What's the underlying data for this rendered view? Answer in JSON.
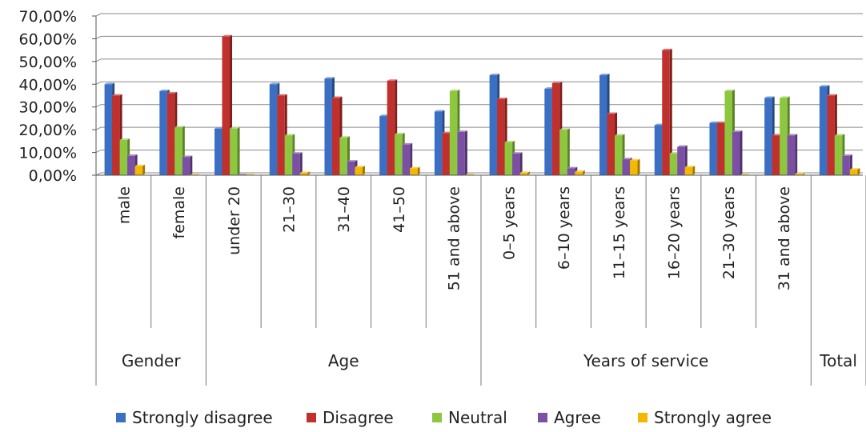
{
  "chart_data": {
    "type": "bar",
    "ylim": [
      0,
      70
    ],
    "y_ticks": [
      "0,00%",
      "10,00%",
      "20,00%",
      "30,00%",
      "40,00%",
      "50,00%",
      "60,00%",
      "70,00%"
    ],
    "y_tick_values": [
      0,
      10,
      20,
      30,
      40,
      50,
      60,
      70
    ],
    "grid": true,
    "legend_position": "bottom",
    "categories": [
      "male",
      "female",
      "under 20",
      "21–30",
      "31–40",
      "41–50",
      "51 and above",
      "0–5 years",
      "6–10 years",
      "11–15 years",
      "16–20 years",
      "21–30 years",
      "31 and above",
      ""
    ],
    "groups": [
      {
        "label": "Gender",
        "span": 2
      },
      {
        "label": "Age",
        "span": 5
      },
      {
        "label": "Years of service",
        "span": 6
      },
      {
        "label": "Total",
        "span": 1
      }
    ],
    "series": [
      {
        "name": "Strongly disagree",
        "color": "#3a6fc4",
        "values": [
          40,
          37,
          20.5,
          40,
          42.5,
          26,
          28,
          44,
          38,
          44,
          22,
          23,
          34,
          39
        ]
      },
      {
        "name": "Disagree",
        "color": "#c0302c",
        "values": [
          35,
          36,
          61,
          35,
          34,
          41.5,
          18.5,
          33.5,
          40.5,
          27,
          55,
          23,
          17.5,
          35
        ]
      },
      {
        "name": "Neutral",
        "color": "#8dc63f",
        "values": [
          15.5,
          21,
          20.5,
          17.5,
          16.5,
          18,
          37,
          14.5,
          20,
          17.5,
          9.5,
          37,
          34,
          17.5
        ]
      },
      {
        "name": "Agree",
        "color": "#7b4fa3",
        "values": [
          8.5,
          8,
          0,
          9.5,
          6,
          13.5,
          19,
          9.5,
          3,
          7,
          12.5,
          19,
          17.5,
          8.5
        ]
      },
      {
        "name": "Strongly agree",
        "color": "#f5b800",
        "values": [
          4,
          0,
          0,
          1,
          3.5,
          3,
          0,
          1,
          1.5,
          6.5,
          3.5,
          0,
          0.5,
          2.5
        ]
      }
    ]
  }
}
